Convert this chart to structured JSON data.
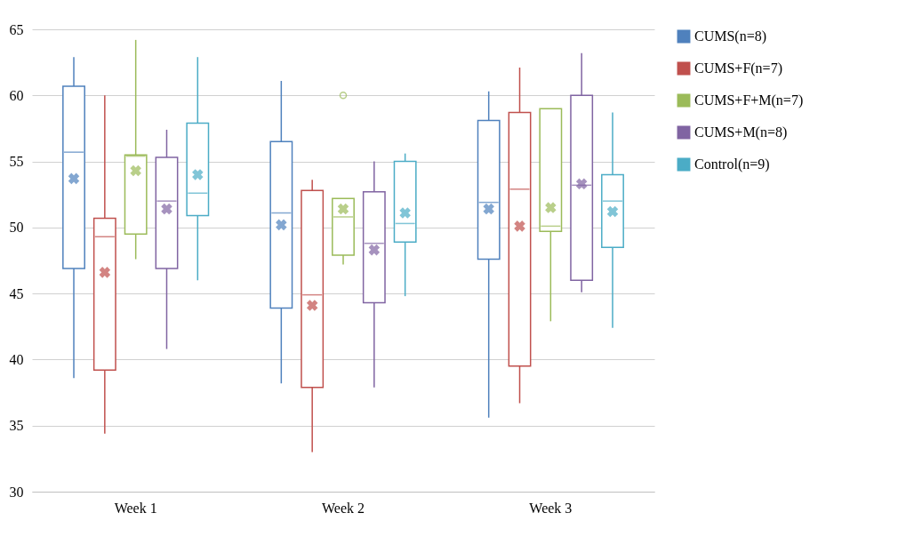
{
  "chart_data": {
    "type": "box",
    "categories": [
      "Week 1",
      "Week 2",
      "Week 3"
    ],
    "series": [
      {
        "name": "CUMS(n=8)",
        "color": "#4f81bd",
        "boxes": [
          {
            "low": 38.6,
            "q1": 46.9,
            "median": 55.7,
            "q3": 60.7,
            "high": 62.9,
            "mean": 53.7
          },
          {
            "low": 38.2,
            "q1": 43.9,
            "median": 51.1,
            "q3": 56.5,
            "high": 61.1,
            "mean": 50.2
          },
          {
            "low": 35.6,
            "q1": 47.6,
            "median": 51.9,
            "q3": 58.1,
            "high": 60.3,
            "mean": 51.4
          }
        ]
      },
      {
        "name": "CUMS+F(n=7)",
        "color": "#c0504d",
        "boxes": [
          {
            "low": 34.4,
            "q1": 39.2,
            "median": 49.3,
            "q3": 50.7,
            "high": 60,
            "mean": 46.6
          },
          {
            "low": 33,
            "q1": 37.9,
            "median": 44.9,
            "q3": 52.8,
            "high": 53.6,
            "mean": 44.1
          },
          {
            "low": 36.7,
            "q1": 39.5,
            "median": 52.9,
            "q3": 58.7,
            "high": 62.1,
            "mean": 50.1
          }
        ]
      },
      {
        "name": "CUMS+F+M(n=7)",
        "color": "#9bbb59",
        "boxes": [
          {
            "low": 47.6,
            "q1": 49.5,
            "median": 55.4,
            "q3": 55.5,
            "high": 64.2,
            "mean": 54.3
          },
          {
            "low": 47.2,
            "q1": 47.9,
            "median": 50.8,
            "q3": 52.2,
            "high": 52.2,
            "mean": 51.4,
            "outliers": [
              60
            ]
          },
          {
            "low": 42.9,
            "q1": 49.7,
            "median": 50.1,
            "q3": 59,
            "high": 59,
            "mean": 51.5
          }
        ]
      },
      {
        "name": "CUMS+M(n=8)",
        "color": "#8064a2",
        "boxes": [
          {
            "low": 40.8,
            "q1": 46.9,
            "median": 52,
            "q3": 55.3,
            "high": 57.4,
            "mean": 51.4
          },
          {
            "low": 37.9,
            "q1": 44.3,
            "median": 48.8,
            "q3": 52.7,
            "high": 55,
            "mean": 48.3
          },
          {
            "low": 45.1,
            "q1": 46,
            "median": 53.2,
            "q3": 60,
            "high": 63.2,
            "mean": 53.3
          }
        ]
      },
      {
        "name": "Control(n=9)",
        "color": "#4bacc6",
        "boxes": [
          {
            "low": 46,
            "q1": 50.9,
            "median": 52.6,
            "q3": 57.9,
            "high": 62.9,
            "mean": 54
          },
          {
            "low": 44.8,
            "q1": 48.9,
            "median": 50.3,
            "q3": 55,
            "high": 55.6,
            "mean": 51.1
          },
          {
            "low": 42.4,
            "q1": 48.5,
            "median": 52,
            "q3": 54,
            "high": 58.7,
            "mean": 51.2
          }
        ]
      }
    ],
    "ylim": [
      30,
      65
    ],
    "yticks": [
      30,
      35,
      40,
      45,
      50,
      55,
      60,
      65
    ],
    "grid": "y",
    "legend": "right"
  }
}
